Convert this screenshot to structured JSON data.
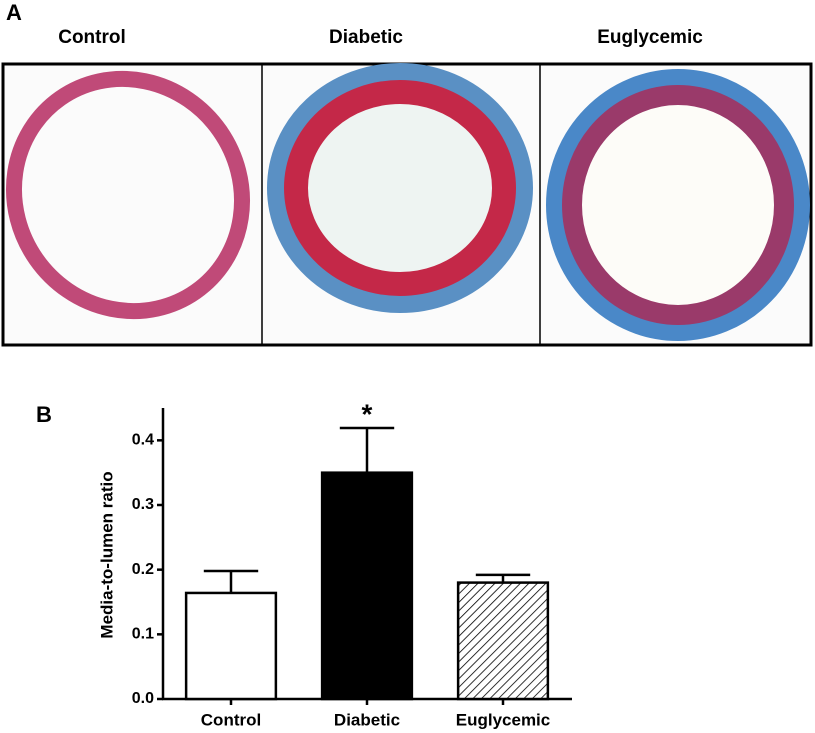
{
  "panel_a": {
    "label": "A",
    "titles": [
      "Control",
      "Diabetic",
      "Euglycemic"
    ]
  },
  "chart_data": {
    "type": "bar",
    "panel_label": "B",
    "ylabel": "Media-to-lumen ratio",
    "categories": [
      "Control",
      "Diabetic",
      "Euglycemic"
    ],
    "values": [
      0.164,
      0.35,
      0.18
    ],
    "errors": [
      0.034,
      0.069,
      0.012
    ],
    "bar_fills": [
      "#ffffff",
      "#000000",
      "hatch"
    ],
    "annotations": [
      {
        "text": "*",
        "category": "Diabetic"
      }
    ],
    "ylim": [
      0,
      0.45
    ],
    "yticks": [
      {
        "value": 0,
        "label": "0.0"
      },
      0.1,
      0.2,
      0.3,
      0.4
    ]
  }
}
